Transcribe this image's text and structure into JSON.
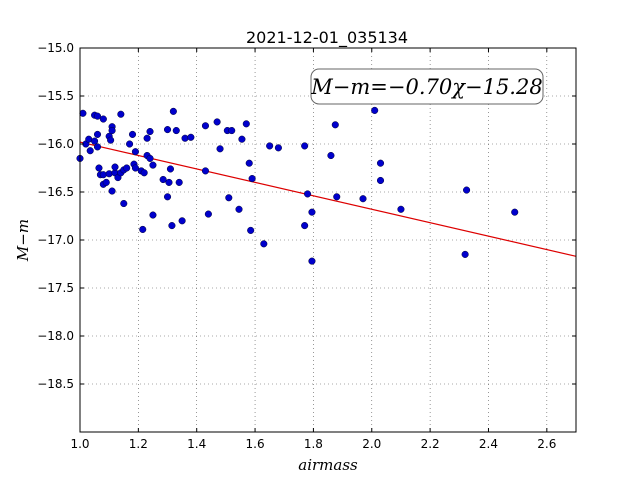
{
  "chart_data": {
    "type": "scatter",
    "title": "2021-12-01_035134",
    "xlabel": "airmass",
    "ylabel": "M−m",
    "xlim": [
      1.0,
      2.7
    ],
    "ylim": [
      -19.0,
      -15.0
    ],
    "x_ticks": [
      1.0,
      1.2,
      1.4,
      1.6,
      1.8,
      2.0,
      2.2,
      2.4,
      2.6
    ],
    "x_tick_labels": [
      "1.0",
      "1.2",
      "1.4",
      "1.6",
      "1.8",
      "2.0",
      "2.2",
      "2.4",
      "2.6"
    ],
    "y_ticks": [
      -15.0,
      -15.5,
      -16.0,
      -16.5,
      -17.0,
      -17.5,
      -18.0,
      -18.5
    ],
    "y_tick_labels": [
      "−15.0",
      "−15.5",
      "−16.0",
      "−16.5",
      "−17.0",
      "−17.5",
      "−18.0",
      "−18.5"
    ],
    "grid": true,
    "annotation": "M−m=−0.70χ−15.28",
    "fit": {
      "slope": -0.7,
      "intercept": -15.28,
      "x_range": [
        1.0,
        2.7
      ],
      "color": "#dd0000"
    },
    "point_color": "#0000cc",
    "points": [
      [
        1.0,
        -16.15
      ],
      [
        1.01,
        -15.68
      ],
      [
        1.02,
        -16.0
      ],
      [
        1.03,
        -15.95
      ],
      [
        1.035,
        -16.07
      ],
      [
        1.05,
        -15.7
      ],
      [
        1.05,
        -15.97
      ],
      [
        1.06,
        -15.71
      ],
      [
        1.06,
        -15.9
      ],
      [
        1.06,
        -16.03
      ],
      [
        1.065,
        -16.25
      ],
      [
        1.07,
        -16.32
      ],
      [
        1.08,
        -15.74
      ],
      [
        1.08,
        -16.32
      ],
      [
        1.08,
        -16.42
      ],
      [
        1.09,
        -16.4
      ],
      [
        1.1,
        -15.92
      ],
      [
        1.1,
        -16.31
      ],
      [
        1.105,
        -15.96
      ],
      [
        1.11,
        -15.82
      ],
      [
        1.11,
        -15.86
      ],
      [
        1.11,
        -16.49
      ],
      [
        1.12,
        -16.3
      ],
      [
        1.12,
        -16.24
      ],
      [
        1.13,
        -16.35
      ],
      [
        1.14,
        -15.69
      ],
      [
        1.14,
        -16.3
      ],
      [
        1.15,
        -16.62
      ],
      [
        1.15,
        -16.27
      ],
      [
        1.16,
        -16.25
      ],
      [
        1.17,
        -16.0
      ],
      [
        1.18,
        -15.9
      ],
      [
        1.185,
        -16.21
      ],
      [
        1.19,
        -16.08
      ],
      [
        1.19,
        -16.25
      ],
      [
        1.21,
        -16.28
      ],
      [
        1.215,
        -16.89
      ],
      [
        1.22,
        -16.3
      ],
      [
        1.23,
        -15.94
      ],
      [
        1.23,
        -16.12
      ],
      [
        1.24,
        -15.87
      ],
      [
        1.24,
        -16.15
      ],
      [
        1.25,
        -16.74
      ],
      [
        1.25,
        -16.22
      ],
      [
        1.285,
        -16.37
      ],
      [
        1.3,
        -15.85
      ],
      [
        1.3,
        -16.55
      ],
      [
        1.305,
        -16.4
      ],
      [
        1.31,
        -16.26
      ],
      [
        1.315,
        -16.85
      ],
      [
        1.32,
        -15.66
      ],
      [
        1.33,
        -15.86
      ],
      [
        1.34,
        -16.4
      ],
      [
        1.35,
        -16.8
      ],
      [
        1.36,
        -15.94
      ],
      [
        1.38,
        -15.93
      ],
      [
        1.43,
        -15.81
      ],
      [
        1.43,
        -16.28
      ],
      [
        1.44,
        -16.73
      ],
      [
        1.47,
        -15.77
      ],
      [
        1.48,
        -16.05
      ],
      [
        1.505,
        -15.86
      ],
      [
        1.51,
        -16.56
      ],
      [
        1.52,
        -15.86
      ],
      [
        1.545,
        -16.68
      ],
      [
        1.555,
        -15.95
      ],
      [
        1.57,
        -15.79
      ],
      [
        1.58,
        -16.2
      ],
      [
        1.585,
        -16.9
      ],
      [
        1.59,
        -16.36
      ],
      [
        1.63,
        -17.04
      ],
      [
        1.65,
        -16.02
      ],
      [
        1.68,
        -16.04
      ],
      [
        1.77,
        -16.02
      ],
      [
        1.77,
        -16.85
      ],
      [
        1.78,
        -16.52
      ],
      [
        1.795,
        -16.71
      ],
      [
        1.795,
        -17.22
      ],
      [
        1.86,
        -16.12
      ],
      [
        1.875,
        -15.8
      ],
      [
        1.88,
        -16.55
      ],
      [
        1.97,
        -16.57
      ],
      [
        2.01,
        -15.65
      ],
      [
        2.03,
        -16.2
      ],
      [
        2.03,
        -16.38
      ],
      [
        2.1,
        -16.68
      ],
      [
        2.32,
        -17.15
      ],
      [
        2.325,
        -16.48
      ],
      [
        2.49,
        -16.71
      ]
    ]
  }
}
